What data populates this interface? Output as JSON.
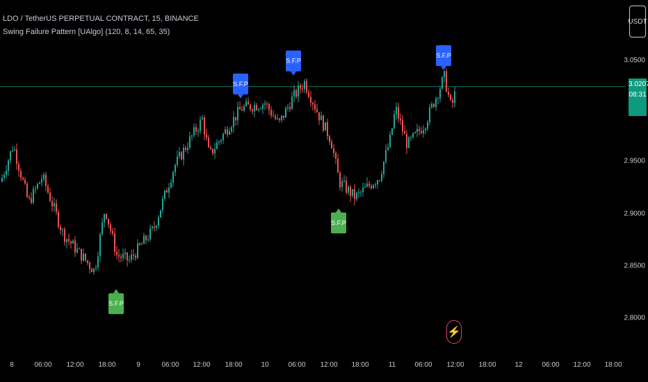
{
  "header": {
    "symbol_line": "LDO / TetherUS PERPETUAL CONTRACT, 15, BINANCE",
    "indicator_line": "Swing Failure Pattern [UAlgo] (120, 8, 14, 65, 35)"
  },
  "price_axis": {
    "ticks": [
      "3.0500",
      "2.9500",
      "2.9000",
      "2.8500",
      "2.8000"
    ],
    "currency_button": "USDT",
    "current_price": "3.0207",
    "countdown": "08:31"
  },
  "time_axis": {
    "ticks": [
      "8",
      "06:00",
      "12:00",
      "18:00",
      "9",
      "06:00",
      "12:00",
      "18:00",
      "10",
      "06:00",
      "12:00",
      "18:00",
      "11",
      "06:00",
      "12:00",
      "18:00",
      "12",
      "06:00",
      "12:00",
      "18:00"
    ]
  },
  "colors": {
    "bull": "#26a69a",
    "bear": "#ef5350",
    "sfp_bearish": "#2962ff",
    "sfp_bullish": "#4caf50",
    "price_line": "#0d7a64"
  },
  "icons": {
    "alert": "lightning-bolt-icon"
  },
  "chart_data": {
    "type": "candlestick",
    "title": "LDO / TetherUS PERPETUAL CONTRACT, 15, BINANCE",
    "x_range": [
      "8",
      "18:00 (12)"
    ],
    "ylim": [
      2.78,
      3.08
    ],
    "y_ticks": [
      3.05,
      2.95,
      2.9,
      2.85,
      2.8
    ],
    "current_price": 3.0207,
    "path_points": [
      {
        "t": 0,
        "p": 2.93
      },
      {
        "t": 18,
        "p": 2.965
      },
      {
        "t": 40,
        "p": 2.91
      },
      {
        "t": 60,
        "p": 2.935
      },
      {
        "t": 90,
        "p": 2.88
      },
      {
        "t": 135,
        "p": 2.845
      },
      {
        "t": 150,
        "p": 2.905
      },
      {
        "t": 167,
        "p": 2.86
      },
      {
        "t": 185,
        "p": 2.855
      },
      {
        "t": 220,
        "p": 2.885
      },
      {
        "t": 250,
        "p": 2.945
      },
      {
        "t": 290,
        "p": 2.99
      },
      {
        "t": 300,
        "p": 2.955
      },
      {
        "t": 330,
        "p": 2.985
      },
      {
        "t": 346,
        "p": 3.0
      },
      {
        "t": 380,
        "p": 3.005
      },
      {
        "t": 400,
        "p": 2.985
      },
      {
        "t": 420,
        "p": 3.01
      },
      {
        "t": 437,
        "p": 3.025
      },
      {
        "t": 460,
        "p": 2.99
      },
      {
        "t": 475,
        "p": 2.97
      },
      {
        "t": 487,
        "p": 2.93
      },
      {
        "t": 510,
        "p": 2.915
      },
      {
        "t": 545,
        "p": 2.935
      },
      {
        "t": 560,
        "p": 2.97
      },
      {
        "t": 568,
        "p": 3.0
      },
      {
        "t": 585,
        "p": 2.965
      },
      {
        "t": 610,
        "p": 2.985
      },
      {
        "t": 638,
        "p": 3.03
      },
      {
        "t": 648,
        "p": 3.0
      },
      {
        "t": 655,
        "p": 3.018
      }
    ],
    "sfp_signals": [
      {
        "type": "bullish",
        "label": "S.F.P",
        "price": 2.829
      },
      {
        "type": "bearish",
        "label": "S.F.P",
        "price": 3.008
      },
      {
        "type": "bearish",
        "label": "S.F.P",
        "price": 3.03
      },
      {
        "type": "bullish",
        "label": "S.F.P",
        "price": 2.906
      },
      {
        "type": "bearish",
        "label": "S.F.P",
        "price": 3.035
      }
    ]
  }
}
